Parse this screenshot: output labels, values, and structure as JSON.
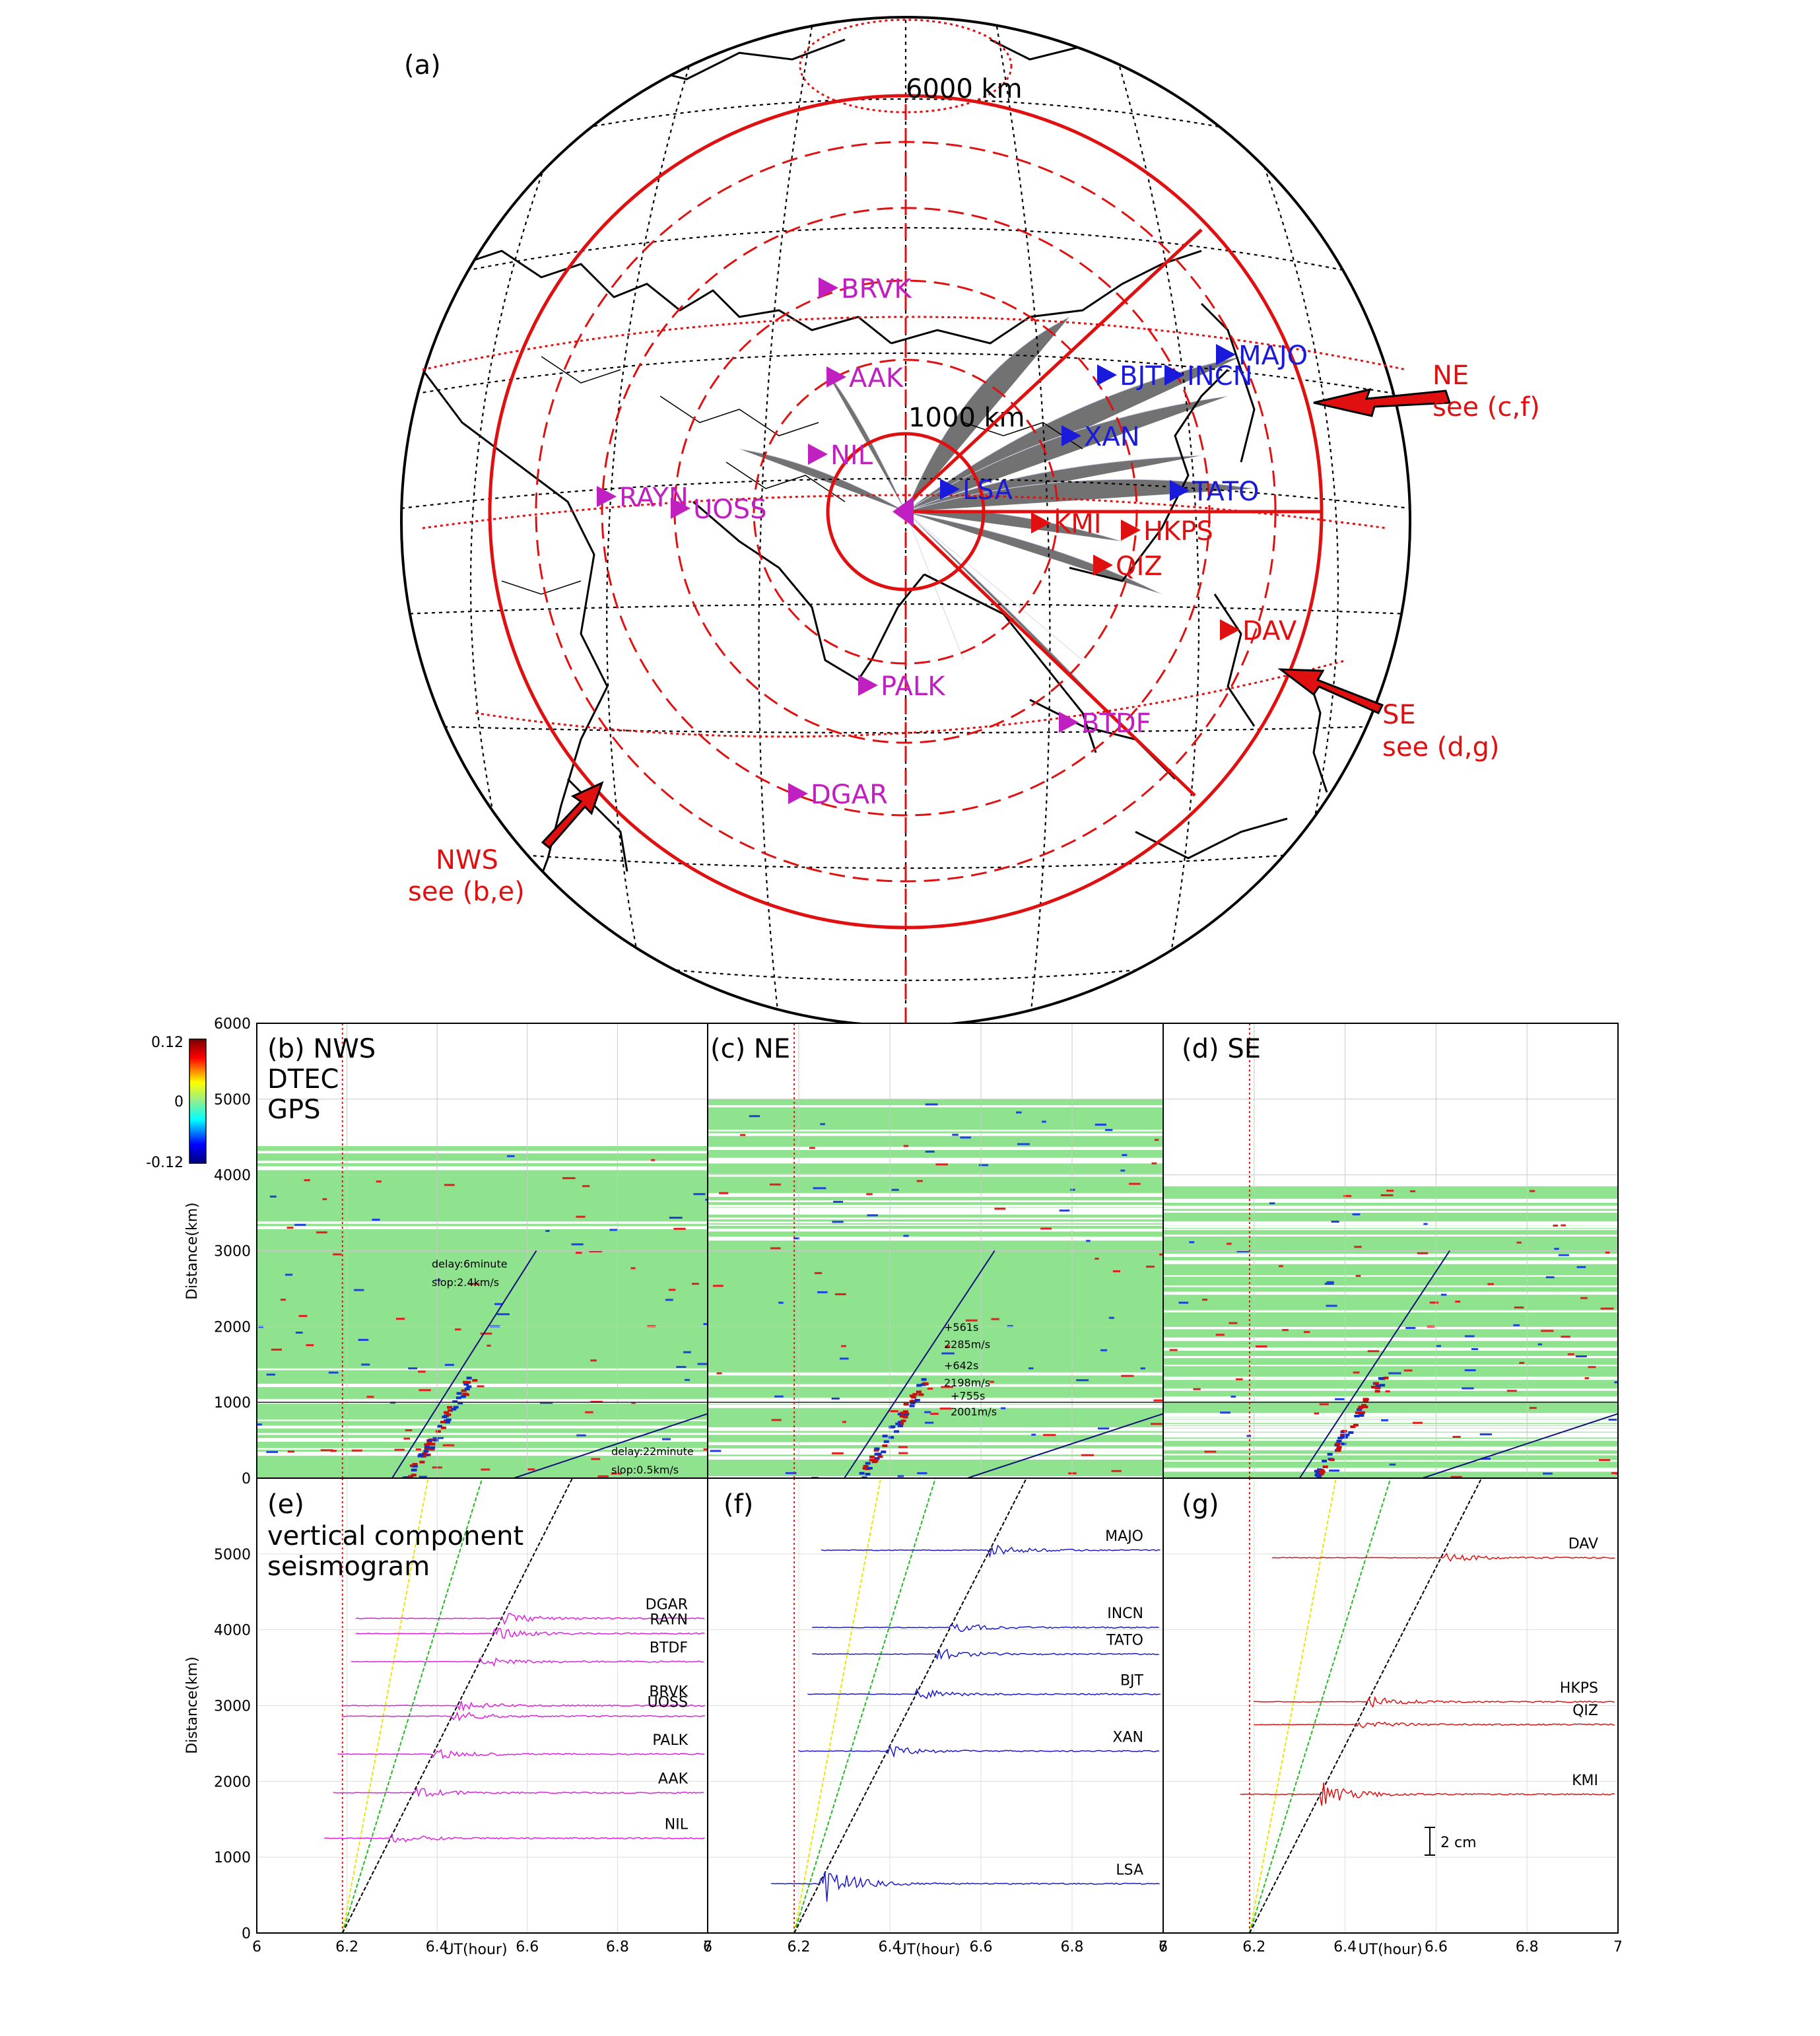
{
  "chart_data": [
    {
      "panel": "(a)",
      "type": "map",
      "projection": "orthographic",
      "panel_label": "(a)",
      "range_rings": [
        {
          "label": "1000 km"
        },
        {
          "label": "6000 km"
        }
      ],
      "stations": [
        {
          "name": "BRVK",
          "group": "NWS",
          "color": "#c020c0"
        },
        {
          "name": "AAK",
          "group": "NWS",
          "color": "#c020c0"
        },
        {
          "name": "NIL",
          "group": "NWS",
          "color": "#c020c0"
        },
        {
          "name": "RAYN",
          "group": "NWS",
          "color": "#c020c0"
        },
        {
          "name": "UOSS",
          "group": "NWS",
          "color": "#c020c0"
        },
        {
          "name": "PALK",
          "group": "NWS",
          "color": "#c020c0"
        },
        {
          "name": "DGAR",
          "group": "NWS",
          "color": "#c020c0"
        },
        {
          "name": "BTDF",
          "group": "NWS",
          "color": "#c020c0"
        },
        {
          "name": "MAJO",
          "group": "NE",
          "color": "#1a1adb"
        },
        {
          "name": "BJT",
          "group": "NE",
          "color": "#1a1adb"
        },
        {
          "name": "INCN",
          "group": "NE",
          "color": "#1a1adb"
        },
        {
          "name": "XAN",
          "group": "NE",
          "color": "#1a1adb"
        },
        {
          "name": "LSA",
          "group": "NE",
          "color": "#1a1adb"
        },
        {
          "name": "TATO",
          "group": "NE",
          "color": "#1a1adb"
        },
        {
          "name": "KMI",
          "group": "SE",
          "color": "#e01010"
        },
        {
          "name": "HKPS",
          "group": "SE",
          "color": "#e01010"
        },
        {
          "name": "QIZ",
          "group": "SE",
          "color": "#e01010"
        },
        {
          "name": "DAV",
          "group": "SE",
          "color": "#e01010"
        }
      ],
      "sectors": [
        {
          "name": "NE",
          "note": "see (c,f)"
        },
        {
          "name": "SE",
          "note": "see (d,g)"
        },
        {
          "name": "NWS",
          "note": "see (b,e)"
        }
      ]
    },
    {
      "panel": "(b)",
      "type": "heatmap",
      "title_lines": [
        "(b) NWS",
        "DTEC",
        "GPS"
      ],
      "ylabel": "Distance(km)",
      "xlim": [
        6,
        7
      ],
      "ylim": [
        0,
        6000
      ],
      "yticks": [
        0,
        1000,
        2000,
        3000,
        4000,
        5000,
        6000
      ],
      "colorbar": {
        "ticks": [
          "0.12",
          "0",
          "-0.12"
        ],
        "range": [
          -0.12,
          0.12
        ]
      },
      "fit_lines": [
        {
          "label_lines": [
            "delay:6minute",
            "slop:2.4km/s"
          ],
          "x": [
            6.3,
            6.62
          ],
          "y": [
            0,
            3000
          ]
        },
        {
          "label_lines": [
            "delay:22minute",
            "slop:0.5km/s"
          ],
          "x": [
            6.57,
            7.0
          ],
          "y": [
            0,
            850
          ]
        }
      ],
      "reference_line_ut": 6.19
    },
    {
      "panel": "(c)",
      "type": "heatmap",
      "title_lines": [
        "(c) NE"
      ],
      "xlim": [
        6,
        7
      ],
      "ylim": [
        0,
        6000
      ],
      "annotations": [
        "+561s",
        "2285m/s",
        "+642s",
        "2198m/s",
        "+755s",
        "2001m/s"
      ],
      "fit_lines": [
        {
          "x": [
            6.3,
            6.63
          ],
          "y": [
            0,
            3000
          ]
        },
        {
          "x": [
            6.57,
            7.0
          ],
          "y": [
            0,
            850
          ]
        }
      ],
      "reference_line_ut": 6.19
    },
    {
      "panel": "(d)",
      "type": "heatmap",
      "title_lines": [
        "(d) SE"
      ],
      "xlim": [
        6,
        7
      ],
      "ylim": [
        0,
        6000
      ],
      "fit_lines": [
        {
          "x": [
            6.3,
            6.63
          ],
          "y": [
            0,
            3000
          ]
        },
        {
          "x": [
            6.57,
            7.0
          ],
          "y": [
            0,
            850
          ]
        }
      ],
      "reference_line_ut": 6.19
    },
    {
      "panel": "(e)",
      "type": "line",
      "title_lines": [
        "(e)",
        "vertical component",
        "seismogram"
      ],
      "xlabel": "UT(hour)",
      "ylabel": "Distance(km)",
      "xlim": [
        6,
        7
      ],
      "xticks": [
        6,
        6.2,
        6.4,
        6.6,
        6.8,
        7
      ],
      "ylim": [
        0,
        6000
      ],
      "yticks": [
        0,
        1000,
        2000,
        3000,
        4000,
        5000
      ],
      "color": "#dd22dd",
      "traces": [
        {
          "name": "DGAR",
          "distance": 4150,
          "start": 6.22
        },
        {
          "name": "RAYN",
          "distance": 3950,
          "start": 6.22
        },
        {
          "name": "BTDF",
          "distance": 3580,
          "start": 6.21
        },
        {
          "name": "BRVK",
          "distance": 3000,
          "start": 6.19
        },
        {
          "name": "UOSS",
          "distance": 2860,
          "start": 6.19
        },
        {
          "name": "PALK",
          "distance": 2360,
          "start": 6.18
        },
        {
          "name": "AAK",
          "distance": 1850,
          "start": 6.17
        },
        {
          "name": "NIL",
          "distance": 1250,
          "start": 6.15
        }
      ],
      "reference_lines": [
        {
          "color": "#e8e800",
          "x": [
            6.19,
            6.38
          ],
          "y": [
            0,
            6000
          ]
        },
        {
          "color": "#22bb22",
          "x": [
            6.19,
            6.5
          ],
          "y": [
            0,
            6000
          ]
        },
        {
          "color": "#000000",
          "x": [
            6.19,
            6.7
          ],
          "y": [
            0,
            6000
          ]
        }
      ],
      "reference_line_ut": 6.19
    },
    {
      "panel": "(f)",
      "type": "line",
      "title_lines": [
        "(f)"
      ],
      "xlabel": "UT(hour)",
      "xlim": [
        6,
        7
      ],
      "xticks": [
        6,
        6.2,
        6.4,
        6.6,
        6.8,
        7
      ],
      "ylim": [
        0,
        6000
      ],
      "color": "#1a1acc",
      "traces": [
        {
          "name": "MAJO",
          "distance": 5050,
          "start": 6.25
        },
        {
          "name": "INCN",
          "distance": 4030,
          "start": 6.23
        },
        {
          "name": "TATO",
          "distance": 3680,
          "start": 6.23
        },
        {
          "name": "BJT",
          "distance": 3150,
          "start": 6.22
        },
        {
          "name": "XAN",
          "distance": 2400,
          "start": 6.2
        },
        {
          "name": "LSA",
          "distance": 650,
          "start": 6.14
        }
      ],
      "reference_lines": [
        {
          "color": "#e8e800",
          "x": [
            6.19,
            6.38
          ],
          "y": [
            0,
            6000
          ]
        },
        {
          "color": "#22bb22",
          "x": [
            6.19,
            6.5
          ],
          "y": [
            0,
            6000
          ]
        },
        {
          "color": "#000000",
          "x": [
            6.19,
            6.7
          ],
          "y": [
            0,
            6000
          ]
        }
      ],
      "reference_line_ut": 6.19
    },
    {
      "panel": "(g)",
      "type": "line",
      "title_lines": [
        "(g)"
      ],
      "xlabel": "UT(hour)",
      "xlim": [
        6,
        7
      ],
      "xticks": [
        6,
        6.2,
        6.4,
        6.6,
        6.8,
        7
      ],
      "ylim": [
        0,
        6000
      ],
      "color": "#dd1111",
      "scale_bar": "2 cm",
      "traces": [
        {
          "name": "DAV",
          "distance": 4950,
          "start": 6.24
        },
        {
          "name": "HKPS",
          "distance": 3050,
          "start": 6.2
        },
        {
          "name": "QIZ",
          "distance": 2750,
          "start": 6.2
        },
        {
          "name": "KMI",
          "distance": 1830,
          "start": 6.17
        }
      ],
      "reference_lines": [
        {
          "color": "#e8e800",
          "x": [
            6.19,
            6.38
          ],
          "y": [
            0,
            6000
          ]
        },
        {
          "color": "#22bb22",
          "x": [
            6.19,
            6.5
          ],
          "y": [
            0,
            6000
          ]
        },
        {
          "color": "#000000",
          "x": [
            6.19,
            6.7
          ],
          "y": [
            0,
            6000
          ]
        }
      ],
      "reference_line_ut": 6.19
    }
  ]
}
